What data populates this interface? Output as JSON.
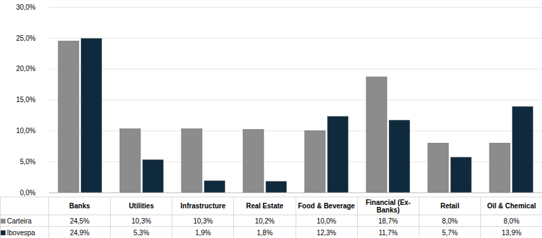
{
  "chart_data": {
    "type": "bar",
    "categories": [
      "Banks",
      "Utilities",
      "Infrastructure",
      "Real Estate",
      "Food & Beverage",
      "Financial (Ex-Banks)",
      "Retail",
      "Oil & Chemical"
    ],
    "series": [
      {
        "name": "Carteira",
        "color": "#8c8c8c",
        "values": [
          24.5,
          10.3,
          10.3,
          10.2,
          10.0,
          18.7,
          8.0,
          8.0
        ],
        "value_labels": [
          "24,5%",
          "10,3%",
          "10,3%",
          "10,2%",
          "10,0%",
          "18,7%",
          "8,0%",
          "8,0%"
        ]
      },
      {
        "name": "Ibovespa",
        "color": "#0f2a3d",
        "values": [
          24.9,
          5.3,
          1.9,
          1.8,
          12.3,
          11.7,
          5.7,
          13.9
        ],
        "value_labels": [
          "24,9%",
          "5,3%",
          "1,9%",
          "1,8%",
          "12,3%",
          "11,7%",
          "5,7%",
          "13,9%"
        ]
      }
    ],
    "ylim": [
      0,
      30
    ],
    "yticks": [
      {
        "value": 0,
        "label": "0,0%"
      },
      {
        "value": 5,
        "label": "5,0%"
      },
      {
        "value": 10,
        "label": "10,0%"
      },
      {
        "value": 15,
        "label": "15,0%"
      },
      {
        "value": 20,
        "label": "20,0%"
      },
      {
        "value": 25,
        "label": "25,0%"
      },
      {
        "value": 30,
        "label": "30,0%"
      }
    ],
    "grid": true
  }
}
